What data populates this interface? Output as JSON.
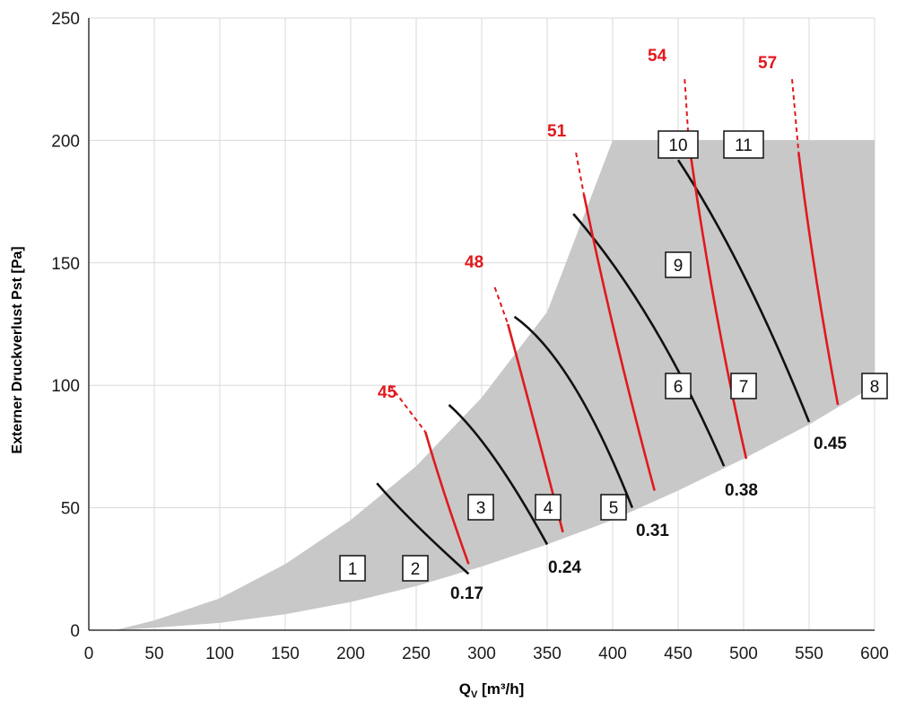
{
  "chart_data": {
    "type": "line",
    "xlabel_main": "Q",
    "xlabel_sub": "V",
    "xlabel_rest": " [m³/h]",
    "ylabel": "Externer Druckverlust Pst [Pa]",
    "xlim": [
      0,
      600
    ],
    "ylim": [
      0,
      250
    ],
    "xticks": [
      0,
      50,
      100,
      150,
      200,
      250,
      300,
      350,
      400,
      450,
      500,
      550,
      600
    ],
    "yticks": [
      0,
      50,
      100,
      150,
      200,
      250
    ],
    "grid": true,
    "colors": {
      "region": "#c8c8c8",
      "red": "#e0191e",
      "black": "#111111",
      "grid": "#d9d9d9"
    },
    "operating_region": {
      "upper": [
        [
          20,
          0
        ],
        [
          50,
          4
        ],
        [
          100,
          13
        ],
        [
          150,
          27
        ],
        [
          200,
          45
        ],
        [
          250,
          67
        ],
        [
          300,
          95
        ],
        [
          350,
          130
        ],
        [
          400,
          200
        ],
        [
          600,
          200
        ]
      ],
      "lower": [
        [
          20,
          0
        ],
        [
          50,
          1
        ],
        [
          100,
          3
        ],
        [
          150,
          6.5
        ],
        [
          200,
          11.5
        ],
        [
          250,
          18
        ],
        [
          300,
          26
        ],
        [
          350,
          35
        ],
        [
          400,
          45
        ],
        [
          450,
          57
        ],
        [
          500,
          70
        ],
        [
          550,
          84
        ],
        [
          600,
          100
        ]
      ]
    },
    "black_curves": [
      {
        "label": "0.17",
        "points": [
          [
            220,
            60
          ],
          [
            250,
            43
          ],
          [
            290,
            23
          ]
        ]
      },
      {
        "label": "0.24",
        "points": [
          [
            275,
            92
          ],
          [
            310,
            70
          ],
          [
            350,
            35
          ]
        ]
      },
      {
        "label": "0.31",
        "points": [
          [
            325,
            128
          ],
          [
            370,
            100
          ],
          [
            415,
            50
          ]
        ]
      },
      {
        "label": "0.38",
        "points": [
          [
            370,
            170
          ],
          [
            430,
            125
          ],
          [
            485,
            67
          ]
        ]
      },
      {
        "label": "0.45",
        "points": [
          [
            450,
            192
          ],
          [
            500,
            145
          ],
          [
            550,
            85
          ]
        ]
      }
    ],
    "red_curves": [
      {
        "label": "45",
        "points": [
          [
            257,
            81
          ],
          [
            272,
            55
          ],
          [
            290,
            27
          ]
        ]
      },
      {
        "label": "48",
        "points": [
          [
            320,
            125
          ],
          [
            340,
            85
          ],
          [
            362,
            40
          ]
        ]
      },
      {
        "label": "51",
        "points": [
          [
            378,
            178
          ],
          [
            403,
            118
          ],
          [
            432,
            57
          ]
        ]
      },
      {
        "label": "54",
        "points": [
          [
            458,
            200
          ],
          [
            478,
            133
          ],
          [
            502,
            70
          ]
        ]
      },
      {
        "label": "57",
        "points": [
          [
            542,
            195
          ],
          [
            555,
            145
          ],
          [
            572,
            92
          ]
        ]
      }
    ],
    "red_leaders": [
      [
        [
          230,
          100
        ],
        [
          257,
          81
        ]
      ],
      [
        [
          310,
          140
        ],
        [
          320,
          125
        ]
      ],
      [
        [
          372,
          195
        ],
        [
          378,
          178
        ]
      ],
      [
        [
          455,
          225
        ],
        [
          458,
          200
        ]
      ],
      [
        [
          537,
          225
        ],
        [
          542,
          195
        ]
      ]
    ],
    "region_labels": [
      "1",
      "2",
      "3",
      "4",
      "5",
      "6",
      "7",
      "8",
      "9",
      "10",
      "11"
    ]
  }
}
